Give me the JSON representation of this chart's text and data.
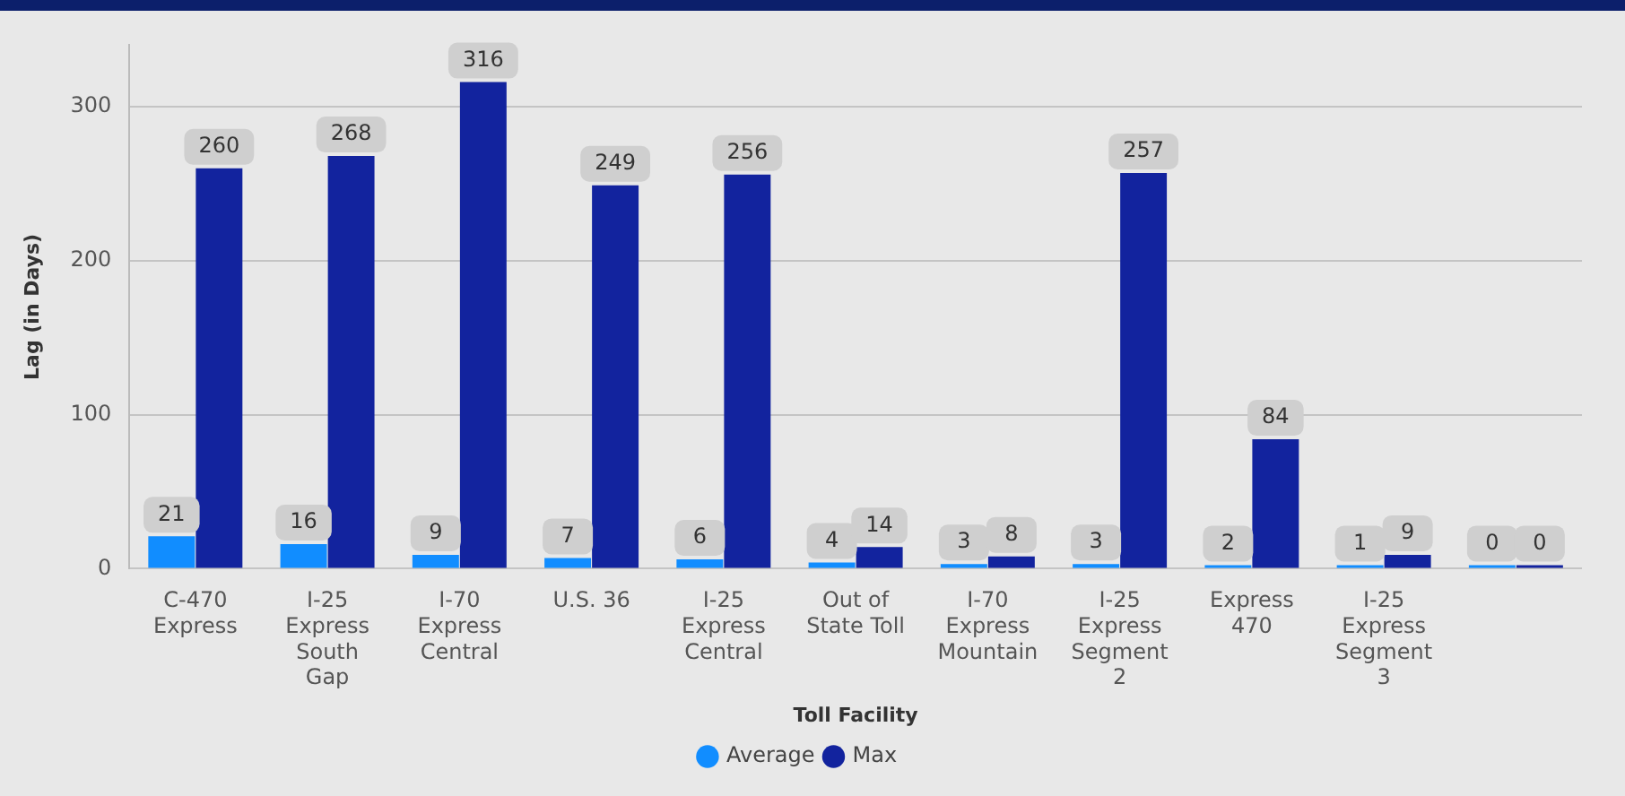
{
  "chart_data": {
    "type": "bar",
    "xlabel": "Toll Facility",
    "ylabel": "Lag (in Days)",
    "categories": [
      "C-470 Express",
      "I-25 Express South Gap",
      "I-70 Express Central",
      "U.S. 36",
      "I-25 Express Central",
      "Out of State Toll",
      "I-70 Express Mountain",
      "I-25 Express Segment 2",
      "Express 470",
      "I-25 Express Segment 3",
      null
    ],
    "series": [
      {
        "name": "Average",
        "color": "#118dff",
        "values": [
          21,
          16,
          9,
          7,
          6,
          4,
          3,
          3,
          2,
          1,
          0
        ]
      },
      {
        "name": "Max",
        "color": "#12239e",
        "values": [
          260,
          268,
          316,
          249,
          256,
          14,
          8,
          257,
          84,
          9,
          0
        ]
      }
    ],
    "ylim": [
      0,
      340
    ],
    "yticks": [
      0,
      100,
      200,
      300
    ],
    "grid": "y",
    "legend": "bottom",
    "data_labels": true
  }
}
